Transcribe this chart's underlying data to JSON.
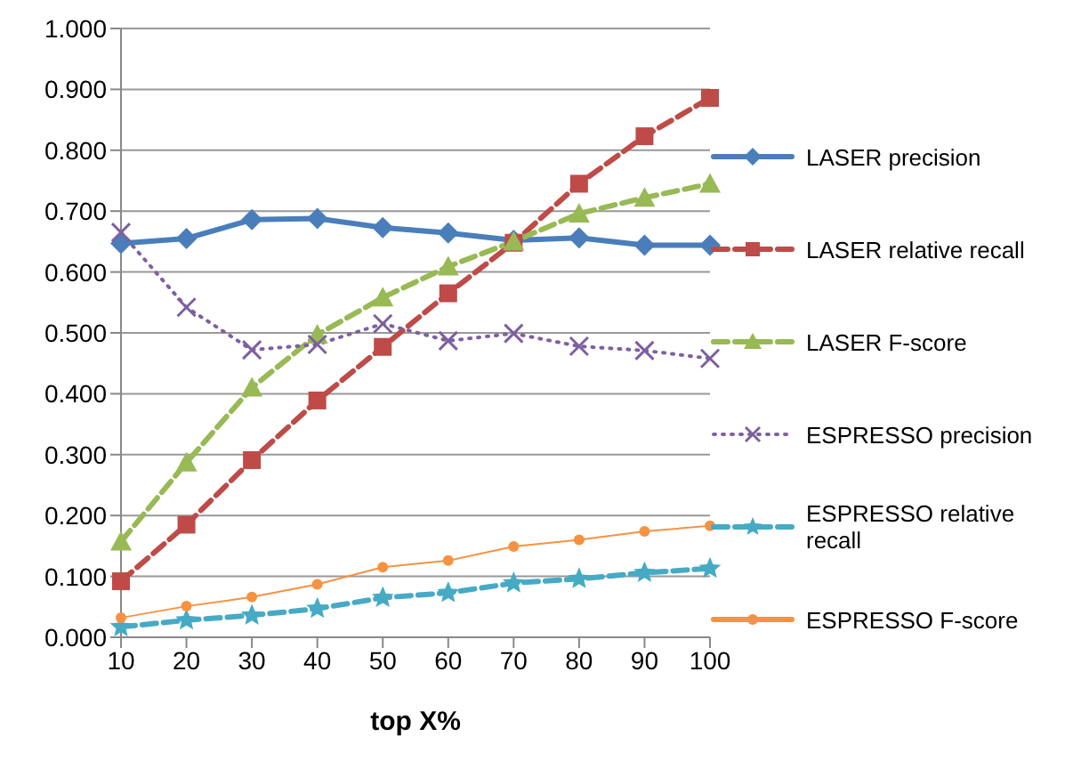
{
  "chart_data": {
    "type": "line",
    "xlabel": "top X%",
    "categories": [
      "10",
      "20",
      "30",
      "40",
      "50",
      "60",
      "70",
      "80",
      "90",
      "100"
    ],
    "series": [
      {
        "name": "LASER precision",
        "color": "#4a7ebb",
        "marker": "diamond",
        "line_style": "solid",
        "values": [
          0.647,
          0.655,
          0.686,
          0.688,
          0.673,
          0.664,
          0.652,
          0.656,
          0.644,
          0.644
        ]
      },
      {
        "name": "LASER relative recall",
        "color": "#be4b48",
        "marker": "square",
        "line_style": "dashed",
        "values": [
          0.092,
          0.185,
          0.291,
          0.389,
          0.477,
          0.565,
          0.648,
          0.745,
          0.823,
          0.886
        ]
      },
      {
        "name": "LASER F-score",
        "color": "#98b954",
        "marker": "triangle",
        "line_style": "dashed",
        "values": [
          0.157,
          0.287,
          0.41,
          0.497,
          0.558,
          0.609,
          0.65,
          0.696,
          0.722,
          0.745
        ]
      },
      {
        "name": "ESPRESSO precision",
        "color": "#7d60a0",
        "marker": "cross",
        "line_style": "dotted",
        "values": [
          0.665,
          0.542,
          0.472,
          0.481,
          0.515,
          0.487,
          0.499,
          0.478,
          0.471,
          0.458
        ]
      },
      {
        "name": "ESPRESSO relative recall",
        "color": "#46aac5",
        "marker": "star",
        "line_style": "dashed",
        "values": [
          0.017,
          0.028,
          0.036,
          0.047,
          0.065,
          0.073,
          0.089,
          0.096,
          0.106,
          0.113
        ]
      },
      {
        "name": "ESPRESSO F-score",
        "color": "#f69240",
        "marker": "circle",
        "line_style": "solid",
        "values": [
          0.032,
          0.051,
          0.066,
          0.087,
          0.115,
          0.126,
          0.149,
          0.16,
          0.174,
          0.183
        ]
      }
    ],
    "ylim": [
      0,
      1
    ],
    "yticks": [
      {
        "value": 0,
        "label": "0.000"
      },
      {
        "value": 0.1,
        "label": "0.100"
      },
      {
        "value": 0.2,
        "label": "0.200"
      },
      {
        "value": 0.3,
        "label": "0.300"
      },
      {
        "value": 0.4,
        "label": "0.400"
      },
      {
        "value": 0.5,
        "label": "0.500"
      },
      {
        "value": 0.6,
        "label": "0.600"
      },
      {
        "value": 0.7,
        "label": "0.700"
      },
      {
        "value": 0.8,
        "label": "0.800"
      },
      {
        "value": 0.9,
        "label": "0.900"
      },
      {
        "value": 1,
        "label": "1.000"
      }
    ],
    "grid": "y",
    "legend": "right"
  }
}
